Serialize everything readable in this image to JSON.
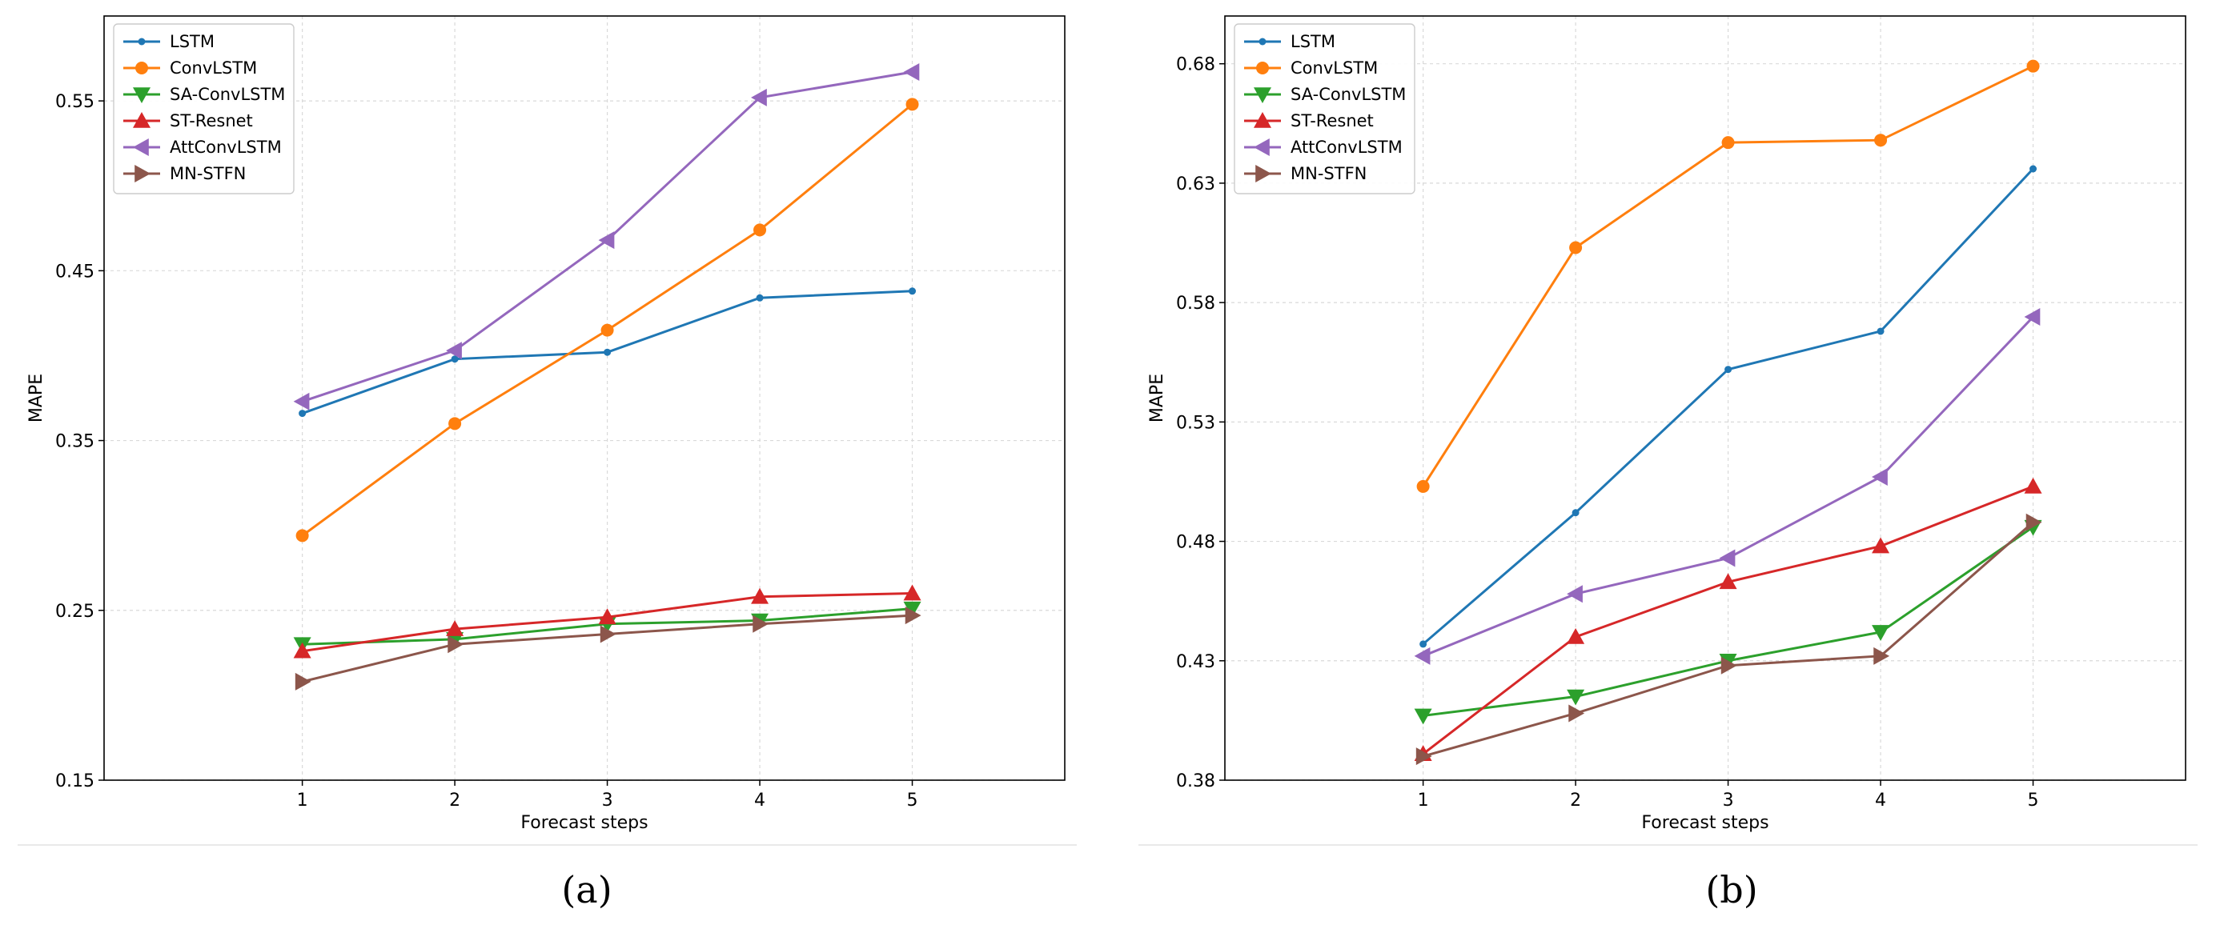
{
  "chart_data": [
    {
      "type": "line",
      "caption": "(a)",
      "xlabel": "Forecast steps",
      "ylabel": "MAPE",
      "x": [
        1,
        2,
        3,
        4,
        5
      ],
      "x_ticks": [
        1,
        2,
        3,
        4,
        5
      ],
      "xlim": [
        -0.3,
        6.0
      ],
      "ylim": [
        0.15,
        0.6
      ],
      "y_ticks": [
        0.15,
        0.25,
        0.35,
        0.45,
        0.55
      ],
      "y_tick_labels": [
        "0.15",
        "0.25",
        "0.35",
        "0.45",
        "0.55"
      ],
      "grid": true,
      "legend_position": "top-left",
      "series": [
        {
          "name": "LSTM",
          "color": "#1f77b4",
          "marker": "point",
          "values": [
            0.366,
            0.398,
            0.402,
            0.434,
            0.438
          ]
        },
        {
          "name": "ConvLSTM",
          "color": "#ff7f0e",
          "marker": "circle",
          "values": [
            0.294,
            0.36,
            0.415,
            0.474,
            0.548
          ]
        },
        {
          "name": "SA-ConvLSTM",
          "color": "#2ca02c",
          "marker": "triangle-down",
          "values": [
            0.23,
            0.233,
            0.242,
            0.244,
            0.251
          ]
        },
        {
          "name": "ST-Resnet",
          "color": "#d62728",
          "marker": "triangle-up",
          "values": [
            0.226,
            0.239,
            0.246,
            0.258,
            0.26
          ]
        },
        {
          "name": "AttConvLSTM",
          "color": "#9467bd",
          "marker": "triangle-left",
          "values": [
            0.373,
            0.403,
            0.468,
            0.552,
            0.567
          ]
        },
        {
          "name": "MN-STFN",
          "color": "#8c564b",
          "marker": "triangle-right",
          "values": [
            0.208,
            0.23,
            0.236,
            0.242,
            0.247
          ]
        }
      ]
    },
    {
      "type": "line",
      "caption": "(b)",
      "xlabel": "Forecast steps",
      "ylabel": "MAPE",
      "x": [
        1,
        2,
        3,
        4,
        5
      ],
      "x_ticks": [
        1,
        2,
        3,
        4,
        5
      ],
      "xlim": [
        -0.3,
        6.0
      ],
      "ylim": [
        0.38,
        0.7
      ],
      "y_ticks": [
        0.38,
        0.43,
        0.48,
        0.53,
        0.58,
        0.63,
        0.68
      ],
      "y_tick_labels": [
        "0.38",
        "0.43",
        "0.48",
        "0.53",
        "0.58",
        "0.63",
        "0.68"
      ],
      "grid": true,
      "legend_position": "top-left",
      "series": [
        {
          "name": "LSTM",
          "color": "#1f77b4",
          "marker": "point",
          "values": [
            0.437,
            0.492,
            0.552,
            0.568,
            0.636
          ]
        },
        {
          "name": "ConvLSTM",
          "color": "#ff7f0e",
          "marker": "circle",
          "values": [
            0.503,
            0.603,
            0.647,
            0.648,
            0.679
          ]
        },
        {
          "name": "SA-ConvLSTM",
          "color": "#2ca02c",
          "marker": "triangle-down",
          "values": [
            0.407,
            0.415,
            0.43,
            0.442,
            0.486
          ]
        },
        {
          "name": "ST-Resnet",
          "color": "#d62728",
          "marker": "triangle-up",
          "values": [
            0.391,
            0.44,
            0.463,
            0.478,
            0.503
          ]
        },
        {
          "name": "AttConvLSTM",
          "color": "#9467bd",
          "marker": "triangle-left",
          "values": [
            0.432,
            0.458,
            0.473,
            0.507,
            0.574
          ]
        },
        {
          "name": "MN-STFN",
          "color": "#8c564b",
          "marker": "triangle-right",
          "values": [
            0.39,
            0.408,
            0.428,
            0.432,
            0.488
          ]
        }
      ]
    }
  ]
}
